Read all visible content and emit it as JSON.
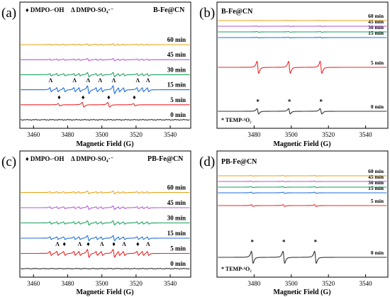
{
  "chart_data": [
    {
      "panel": "(a)",
      "type": "line",
      "title": "B-Fe@CN",
      "legend": [
        "♦ DMPO-·OH",
        "Δ DMPO-SO₄·⁻"
      ],
      "xlabel": "Magnetic Field (G)",
      "xlim": [
        3452,
        3552
      ],
      "xticks": [
        3460,
        3480,
        3500,
        3520,
        3540
      ],
      "series": [
        {
          "name": "0 min",
          "color": "#333333",
          "kind": "noise"
        },
        {
          "name": "5 min",
          "color": "#e8282b",
          "kind": "oh",
          "amp": 0.55,
          "markers": [
            {
              "x": 3475,
              "sym": "♦"
            },
            {
              "x": 3489,
              "sym": "♦"
            },
            {
              "x": 3504,
              "sym": "♦"
            },
            {
              "x": 3519,
              "sym": "♦"
            }
          ]
        },
        {
          "name": "15 min",
          "color": "#1f6fd6",
          "kind": "mixed",
          "amp": 1.0,
          "markers": [
            {
              "x": 3470,
              "sym": "Λ"
            },
            {
              "x": 3484,
              "sym": "Λ"
            },
            {
              "x": 3492,
              "sym": "Λ"
            },
            {
              "x": 3499,
              "sym": "Λ"
            },
            {
              "x": 3507,
              "sym": "Λ"
            },
            {
              "x": 3521,
              "sym": "Λ"
            },
            {
              "x": 3527,
              "sym": "Λ"
            }
          ]
        },
        {
          "name": "30 min",
          "color": "#1aa260",
          "kind": "mixed",
          "amp": 0.55
        },
        {
          "name": "45 min",
          "color": "#b25ad8",
          "kind": "mixed",
          "amp": 0.3
        },
        {
          "name": "60 min",
          "color": "#e8a317",
          "kind": "mixed",
          "amp": 0.22
        }
      ]
    },
    {
      "panel": "(b)",
      "type": "line",
      "title": "B-Fe@CN",
      "legend": [
        "* TEMP-¹O₂"
      ],
      "xlabel": "Magnetic Field (G)",
      "xlim": [
        3460,
        3552
      ],
      "xticks": [
        3480,
        3500,
        3520,
        3540
      ],
      "series": [
        {
          "name": "0 min",
          "color": "#333333",
          "kind": "temp",
          "amp": 0.45,
          "markers": [
            {
              "x": 3482,
              "sym": "*"
            },
            {
              "x": 3499,
              "sym": "*"
            },
            {
              "x": 3516,
              "sym": "*"
            }
          ]
        },
        {
          "name": "5 min",
          "color": "#e8282b",
          "kind": "temp",
          "amp": 1.0
        },
        {
          "name": "15 min",
          "color": "#1f6fd6",
          "kind": "temp",
          "amp": 0.06
        },
        {
          "name": "30 min",
          "color": "#1aa260",
          "kind": "temp",
          "amp": 0.05
        },
        {
          "name": "45 min",
          "color": "#b25ad8",
          "kind": "temp",
          "amp": 0.04
        },
        {
          "name": "60 min",
          "color": "#e8a317",
          "kind": "temp",
          "amp": 0.03
        }
      ]
    },
    {
      "panel": "(c)",
      "type": "line",
      "title": "PB-Fe@CN",
      "legend": [
        "♦ DMPO-·OH",
        "Δ DMPO-SO₄·⁻"
      ],
      "xlabel": "Magnetic Field (G)",
      "xlim": [
        3452,
        3552
      ],
      "xticks": [
        3460,
        3480,
        3500,
        3520,
        3540
      ],
      "series": [
        {
          "name": "0 min",
          "color": "#333333",
          "kind": "noise"
        },
        {
          "name": "5 min",
          "color": "#e8282b",
          "kind": "mixed",
          "amp": 1.0,
          "markers": [
            {
              "x": 3474,
              "sym": "Λ"
            },
            {
              "x": 3478,
              "sym": "♦"
            },
            {
              "x": 3487,
              "sym": "Λ"
            },
            {
              "x": 3492,
              "sym": "♦"
            },
            {
              "x": 3500,
              "sym": "Λ"
            },
            {
              "x": 3507,
              "sym": "♦"
            },
            {
              "x": 3513,
              "sym": "Λ"
            },
            {
              "x": 3521,
              "sym": "♦"
            },
            {
              "x": 3527,
              "sym": "Λ"
            }
          ]
        },
        {
          "name": "15 min",
          "color": "#1f6fd6",
          "kind": "mixed",
          "amp": 0.65
        },
        {
          "name": "30 min",
          "color": "#1aa260",
          "kind": "mixed",
          "amp": 0.55
        },
        {
          "name": "45 min",
          "color": "#b25ad8",
          "kind": "mixed",
          "amp": 0.45
        },
        {
          "name": "60 min",
          "color": "#e8a317",
          "kind": "mixed",
          "amp": 0.35
        }
      ]
    },
    {
      "panel": "(d)",
      "type": "line",
      "title": "PB-Fe@CN",
      "legend": [
        "* TEMP-¹O₂"
      ],
      "xlabel": "Magnetic Field (G)",
      "xlim": [
        3460,
        3552
      ],
      "xticks": [
        3480,
        3500,
        3520,
        3540
      ],
      "series": [
        {
          "name": "0 min",
          "color": "#333333",
          "kind": "temp",
          "amp": 1.0,
          "markers": [
            {
              "x": 3479,
              "sym": "*"
            },
            {
              "x": 3496,
              "sym": "*"
            },
            {
              "x": 3513,
              "sym": "*"
            }
          ]
        },
        {
          "name": "5 min",
          "color": "#e8282b",
          "kind": "temp",
          "amp": 0.15
        },
        {
          "name": "15 min",
          "color": "#1f6fd6",
          "kind": "temp",
          "amp": 0.1
        },
        {
          "name": "30 min",
          "color": "#1aa260",
          "kind": "temp",
          "amp": 0.07
        },
        {
          "name": "45 min",
          "color": "#b25ad8",
          "kind": "temp",
          "amp": 0.05
        },
        {
          "name": "60 min",
          "color": "#e8a317",
          "kind": "temp",
          "amp": 0.04
        }
      ]
    }
  ]
}
